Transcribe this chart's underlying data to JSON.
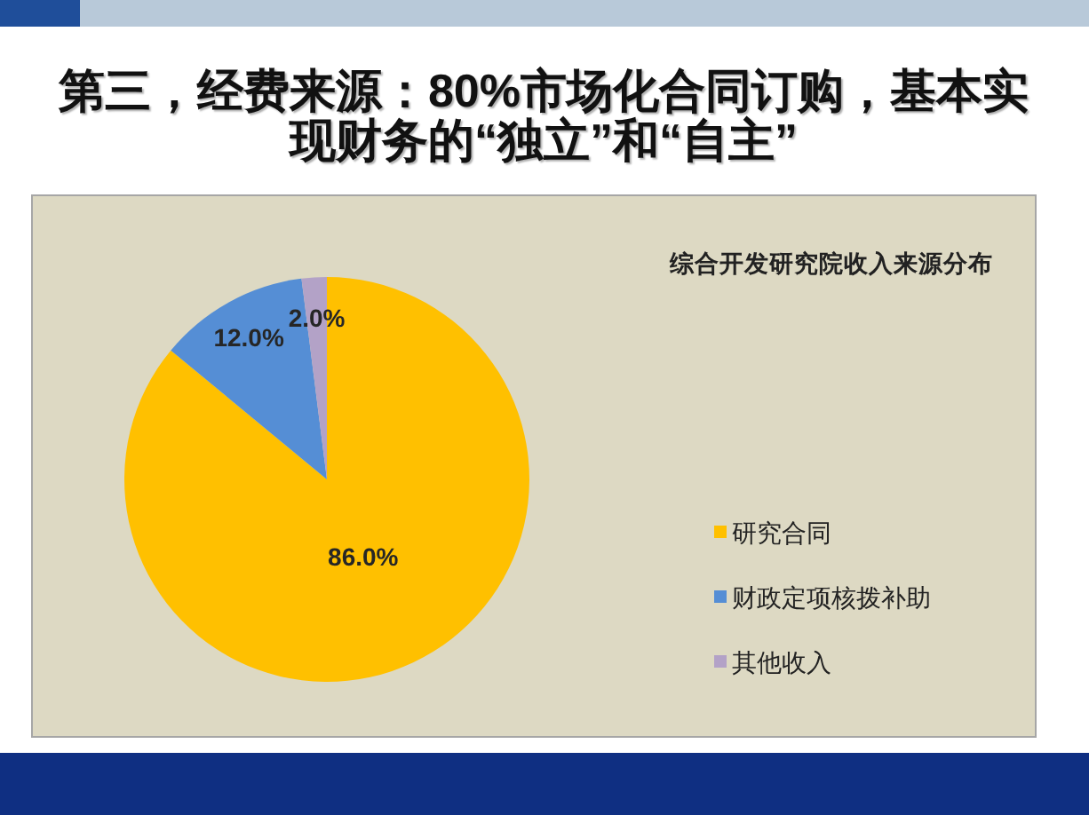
{
  "chart_data": {
    "type": "pie",
    "title": "第三，经费来源：80%市场化合同订购，基本实现财务的“独立”和“自主”",
    "subtitle": "综合开发研究院收入来源分布",
    "categories": [
      "研究合同",
      "财政定项核拨补助",
      "其他收入"
    ],
    "values": [
      86,
      12,
      2
    ],
    "colors": [
      "#ffc000",
      "#558ed5",
      "#b3a2c7"
    ],
    "value_labels": [
      "86.0%",
      "12.0%",
      "2.0%"
    ],
    "legend": "right"
  }
}
